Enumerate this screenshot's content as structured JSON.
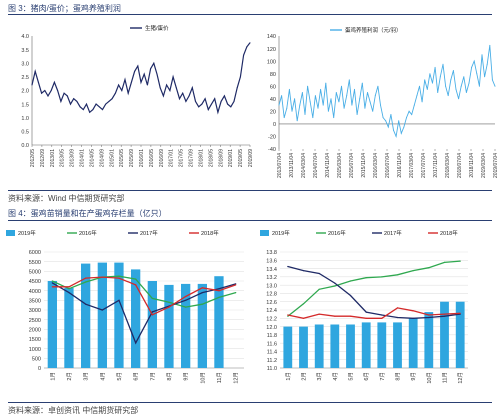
{
  "fig3": {
    "caption": "图 3：猪肉/蛋价；蛋鸡养殖利润",
    "source": "资料来源：Wind  中信期货研究部"
  },
  "fig4": {
    "caption": "图 4：蛋鸡苗销量和在产蛋鸡存栏量（亿只）",
    "source": "资料来源：卓创资讯  中信期货研究部"
  },
  "colors": {
    "navy": "#1f2a66",
    "sky": "#49aee6",
    "bar": "#2fa6df",
    "green": "#2fa84f",
    "red": "#d42a2a",
    "caption": "#2a3f72"
  },
  "chart_data": [
    {
      "id": "pig-egg-ratio",
      "type": "line",
      "legend": [
        "生猪/蛋价"
      ],
      "ylim": [
        0,
        4.0
      ],
      "yticks": [
        "0.0",
        "0.5",
        "1.0",
        "1.5",
        "2.0",
        "2.5",
        "3.0",
        "3.5",
        "4.0"
      ],
      "xticks": [
        "2012/05",
        "2012/09",
        "2013/01",
        "2013/05",
        "2013/09",
        "2014/01",
        "2014/05",
        "2014/09",
        "2015/01",
        "2015/05",
        "2015/09",
        "2016/01",
        "2016/05",
        "2016/09",
        "2017/01",
        "2017/05",
        "2017/09",
        "2018/01",
        "2018/05",
        "2018/09",
        "2019/01",
        "2019/05",
        "2019/09"
      ],
      "x_start": "2012/05",
      "x_step": "1 month",
      "series": [
        {
          "name": "生猪/蛋价",
          "values": [
            2.2,
            2.7,
            2.3,
            1.9,
            2.0,
            1.8,
            2.0,
            2.3,
            2.0,
            1.6,
            1.9,
            1.8,
            1.5,
            1.7,
            1.6,
            1.4,
            1.3,
            1.5,
            1.2,
            1.3,
            1.5,
            1.4,
            1.3,
            1.5,
            1.6,
            1.7,
            1.9,
            2.2,
            2.0,
            2.4,
            1.9,
            2.3,
            2.7,
            2.9,
            2.3,
            2.6,
            2.2,
            2.8,
            3.0,
            2.6,
            2.1,
            1.8,
            2.2,
            2.0,
            2.5,
            2.1,
            1.7,
            1.9,
            1.6,
            1.8,
            2.1,
            1.6,
            1.4,
            1.5,
            1.7,
            1.3,
            1.5,
            1.7,
            1.2,
            1.6,
            1.8,
            1.5,
            1.4,
            1.6,
            2.1,
            2.5,
            3.3,
            3.6,
            3.75
          ]
        }
      ]
    },
    {
      "id": "layer-profit",
      "type": "line",
      "legend": [
        "蛋鸡养殖利润（元/羽）"
      ],
      "ylim": [
        -40,
        140
      ],
      "yticks": [
        "-40",
        "-20",
        "0",
        "20",
        "40",
        "60",
        "80",
        "100",
        "120",
        "140"
      ],
      "xticks": [
        "2013/07/04",
        "2013/11/04",
        "2014/03/04",
        "2014/07/04",
        "2014/11/04",
        "2015/03/04",
        "2015/07/04",
        "2015/11/04",
        "2016/03/04",
        "2016/07/04",
        "2016/11/04",
        "2017/03/04",
        "2017/07/04",
        "2017/11/04",
        "2018/03/04",
        "2018/07/04",
        "2018/11/04",
        "2019/03/04",
        "2019/07/04"
      ],
      "x_start": "2013/07/04",
      "x_step": "2 weeks",
      "series": [
        {
          "name": "蛋鸡养殖利润（元/羽）",
          "values": [
            30,
            45,
            10,
            25,
            55,
            20,
            40,
            5,
            30,
            50,
            15,
            60,
            35,
            10,
            45,
            25,
            55,
            30,
            65,
            20,
            40,
            10,
            50,
            35,
            60,
            25,
            45,
            70,
            30,
            55,
            15,
            40,
            65,
            25,
            50,
            35,
            20,
            45,
            60,
            30,
            10,
            5,
            -5,
            15,
            -10,
            -20,
            5,
            -15,
            -5,
            10,
            20,
            15,
            30,
            45,
            60,
            35,
            70,
            55,
            80,
            65,
            90,
            50,
            75,
            95,
            60,
            45,
            70,
            85,
            55,
            40,
            60,
            75,
            50,
            65,
            90,
            100,
            80,
            60,
            110,
            75,
            95,
            125,
            70,
            60
          ]
        }
      ]
    },
    {
      "id": "chick-sales",
      "type": "bar",
      "legend": [
        "2019年",
        "2016年",
        "2017年",
        "2018年"
      ],
      "ylim": [
        0,
        6000
      ],
      "yticks": [
        "0",
        "500",
        "1000",
        "1500",
        "2000",
        "2500",
        "3000",
        "3500",
        "4000",
        "4500",
        "5000",
        "5500",
        "6000"
      ],
      "categories": [
        "1月",
        "2月",
        "3月",
        "4月",
        "5月",
        "6月",
        "7月",
        "8月",
        "9月",
        "10月",
        "11月",
        "12月"
      ],
      "series": [
        {
          "name": "2019年",
          "values": [
            4500,
            4150,
            5400,
            5450,
            5450,
            5100,
            4500,
            4300,
            4350,
            4350,
            4750,
            null
          ]
        },
        {
          "name": "2016年",
          "values": [
            4500,
            4100,
            4450,
            4700,
            4750,
            4600,
            3600,
            3400,
            3150,
            3300,
            3650,
            3900
          ]
        },
        {
          "name": "2017年",
          "values": [
            4400,
            3900,
            3300,
            3000,
            3500,
            1300,
            2900,
            3200,
            3500,
            3900,
            4100,
            4350
          ]
        },
        {
          "name": "2018年",
          "values": [
            4200,
            4200,
            4650,
            4700,
            4650,
            4300,
            2750,
            3150,
            3700,
            4150,
            4000,
            4300
          ]
        }
      ]
    },
    {
      "id": "layer-inventory",
      "type": "bar",
      "legend": [
        "2019年",
        "2016年",
        "2017年",
        "2018年"
      ],
      "ylim": [
        11.0,
        13.8
      ],
      "yticks": [
        "11.0",
        "11.2",
        "11.4",
        "11.6",
        "11.8",
        "12.0",
        "12.2",
        "12.4",
        "12.6",
        "12.8",
        "13.0",
        "13.2",
        "13.4",
        "13.6",
        "13.8"
      ],
      "categories": [
        "1月",
        "2月",
        "3月",
        "4月",
        "5月",
        "6月",
        "7月",
        "8月",
        "9月",
        "10月",
        "11月",
        "12月"
      ],
      "series": [
        {
          "name": "2019年",
          "values": [
            12.0,
            12.0,
            12.05,
            12.05,
            12.05,
            12.1,
            12.1,
            12.1,
            12.2,
            12.35,
            12.6,
            12.6
          ]
        },
        {
          "name": "2016年",
          "values": [
            12.25,
            12.55,
            12.9,
            12.98,
            13.1,
            13.18,
            13.2,
            13.25,
            13.35,
            13.42,
            13.55,
            13.58
          ]
        },
        {
          "name": "2017年",
          "values": [
            13.45,
            13.35,
            13.28,
            13.05,
            12.75,
            12.35,
            12.28,
            12.22,
            12.2,
            12.22,
            12.25,
            12.3
          ]
        },
        {
          "name": "2018年",
          "values": [
            12.28,
            12.2,
            12.3,
            12.25,
            12.25,
            12.2,
            12.2,
            12.45,
            12.38,
            12.28,
            12.3,
            12.32
          ]
        }
      ]
    }
  ]
}
